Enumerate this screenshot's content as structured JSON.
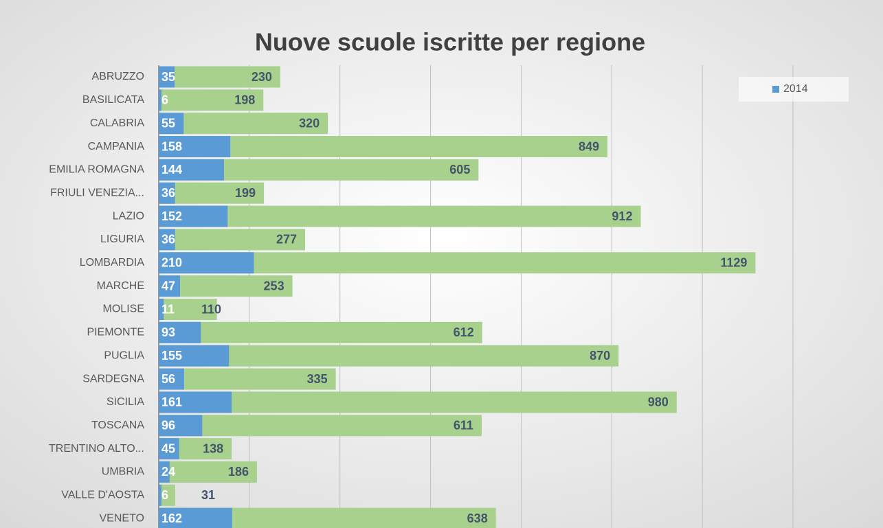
{
  "chart_data": {
    "type": "bar",
    "orientation": "horizontal",
    "title": "Nuove scuole iscritte per regione",
    "categories": [
      "ABRUZZO",
      "BASILICATA",
      "CALABRIA",
      "CAMPANIA",
      "EMILIA ROMAGNA",
      "FRIULI VENEZIA...",
      "LAZIO",
      "LIGURIA",
      "LOMBARDIA",
      "MARCHE",
      "MOLISE",
      "PIEMONTE",
      "PUGLIA",
      "SARDEGNA",
      "SICILIA",
      "TOSCANA",
      "TRENTINO ALTO...",
      "UMBRIA",
      "VALLE D'AOSTA",
      "VENETO"
    ],
    "series": [
      {
        "color": "#a9d18e",
        "axis": "x2",
        "values": [
          230,
          198,
          320,
          849,
          605,
          199,
          912,
          277,
          1129,
          253,
          110,
          612,
          870,
          335,
          980,
          611,
          138,
          186,
          31,
          638
        ]
      },
      {
        "name": "2014",
        "color": "#5b9bd5",
        "values": [
          35,
          6,
          55,
          158,
          144,
          36,
          152,
          36,
          210,
          47,
          11,
          93,
          155,
          56,
          161,
          96,
          45,
          24,
          6,
          162
        ]
      }
    ],
    "xlim": [
      0,
      1400
    ],
    "xticks": [
      0,
      200,
      400,
      600,
      800,
      1000,
      1200,
      1400
    ],
    "x2lim": [
      0,
      1200
    ],
    "grid": true,
    "legend": "top-right"
  }
}
